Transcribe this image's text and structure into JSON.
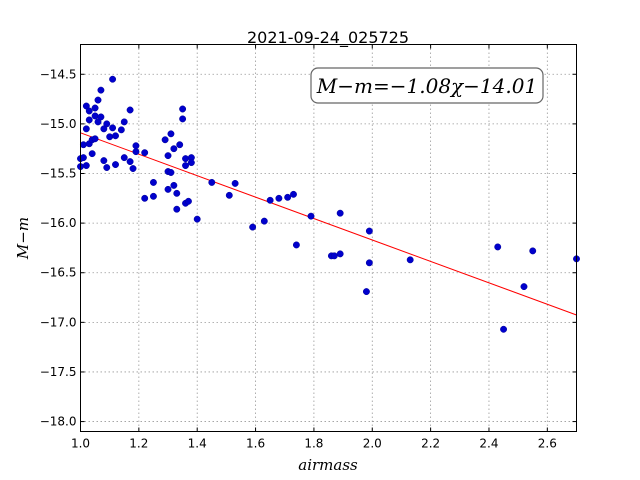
{
  "chart_data": {
    "type": "scatter",
    "title": "2021-09-24_025725",
    "xlabel": "airmass",
    "ylabel": "M−m",
    "annotation": "M−m=−1.08χ−14.01",
    "xlim": [
      1.0,
      2.7
    ],
    "ylim": [
      -18.1,
      -14.2
    ],
    "x_ticks": [
      1.0,
      1.2,
      1.4,
      1.6,
      1.8,
      2.0,
      2.2,
      2.4,
      2.6
    ],
    "x_tick_labels": [
      "1.0",
      "1.2",
      "1.4",
      "1.6",
      "1.8",
      "2.0",
      "2.2",
      "2.4",
      "2.6"
    ],
    "y_ticks": [
      -14.5,
      -15.0,
      -15.5,
      -16.0,
      -16.5,
      -17.0,
      -17.5,
      -18.0
    ],
    "y_tick_labels": [
      "−14.5",
      "−15.0",
      "−15.5",
      "−16.0",
      "−16.5",
      "−17.0",
      "−17.5",
      "−18.0"
    ],
    "grid": true,
    "fit_line": {
      "slope": -1.08,
      "intercept": -14.01,
      "color": "#ff0000"
    },
    "point_color": "#0000cc",
    "points": [
      [
        1.0,
        -15.35
      ],
      [
        1.0,
        -15.43
      ],
      [
        1.01,
        -15.21
      ],
      [
        1.01,
        -15.34
      ],
      [
        1.02,
        -15.42
      ],
      [
        1.02,
        -15.05
      ],
      [
        1.02,
        -14.82
      ],
      [
        1.03,
        -15.2
      ],
      [
        1.03,
        -14.96
      ],
      [
        1.03,
        -14.87
      ],
      [
        1.04,
        -15.3
      ],
      [
        1.04,
        -15.16
      ],
      [
        1.05,
        -14.92
      ],
      [
        1.05,
        -14.84
      ],
      [
        1.05,
        -15.15
      ],
      [
        1.06,
        -14.76
      ],
      [
        1.06,
        -14.98
      ],
      [
        1.07,
        -14.93
      ],
      [
        1.07,
        -14.66
      ],
      [
        1.08,
        -15.05
      ],
      [
        1.08,
        -15.37
      ],
      [
        1.09,
        -15.44
      ],
      [
        1.09,
        -15.0
      ],
      [
        1.1,
        -15.13
      ],
      [
        1.11,
        -15.04
      ],
      [
        1.11,
        -14.55
      ],
      [
        1.12,
        -15.12
      ],
      [
        1.12,
        -15.41
      ],
      [
        1.14,
        -15.06
      ],
      [
        1.15,
        -15.34
      ],
      [
        1.15,
        -14.98
      ],
      [
        1.17,
        -15.38
      ],
      [
        1.17,
        -14.86
      ],
      [
        1.18,
        -15.45
      ],
      [
        1.19,
        -15.22
      ],
      [
        1.19,
        -15.28
      ],
      [
        1.22,
        -15.29
      ],
      [
        1.22,
        -15.75
      ],
      [
        1.25,
        -15.59
      ],
      [
        1.25,
        -15.73
      ],
      [
        1.29,
        -15.16
      ],
      [
        1.3,
        -15.32
      ],
      [
        1.3,
        -15.48
      ],
      [
        1.3,
        -15.66
      ],
      [
        1.31,
        -15.1
      ],
      [
        1.31,
        -15.49
      ],
      [
        1.32,
        -15.62
      ],
      [
        1.32,
        -15.25
      ],
      [
        1.33,
        -15.7
      ],
      [
        1.33,
        -15.86
      ],
      [
        1.34,
        -15.21
      ],
      [
        1.35,
        -14.85
      ],
      [
        1.35,
        -14.95
      ],
      [
        1.36,
        -15.35
      ],
      [
        1.36,
        -15.42
      ],
      [
        1.36,
        -15.8
      ],
      [
        1.37,
        -15.78
      ],
      [
        1.38,
        -15.34
      ],
      [
        1.38,
        -15.39
      ],
      [
        1.4,
        -15.96
      ],
      [
        1.45,
        -15.59
      ],
      [
        1.51,
        -15.72
      ],
      [
        1.53,
        -15.6
      ],
      [
        1.59,
        -16.04
      ],
      [
        1.63,
        -15.98
      ],
      [
        1.65,
        -15.77
      ],
      [
        1.68,
        -15.75
      ],
      [
        1.71,
        -15.74
      ],
      [
        1.73,
        -15.71
      ],
      [
        1.74,
        -16.22
      ],
      [
        1.79,
        -15.93
      ],
      [
        1.86,
        -16.33
      ],
      [
        1.87,
        -16.33
      ],
      [
        1.89,
        -16.31
      ],
      [
        1.89,
        -15.9
      ],
      [
        1.98,
        -16.69
      ],
      [
        1.99,
        -16.4
      ],
      [
        1.99,
        -16.08
      ],
      [
        2.13,
        -16.37
      ],
      [
        2.43,
        -16.24
      ],
      [
        2.45,
        -17.07
      ],
      [
        2.52,
        -16.64
      ],
      [
        2.55,
        -16.28
      ],
      [
        2.7,
        -16.36
      ]
    ]
  }
}
